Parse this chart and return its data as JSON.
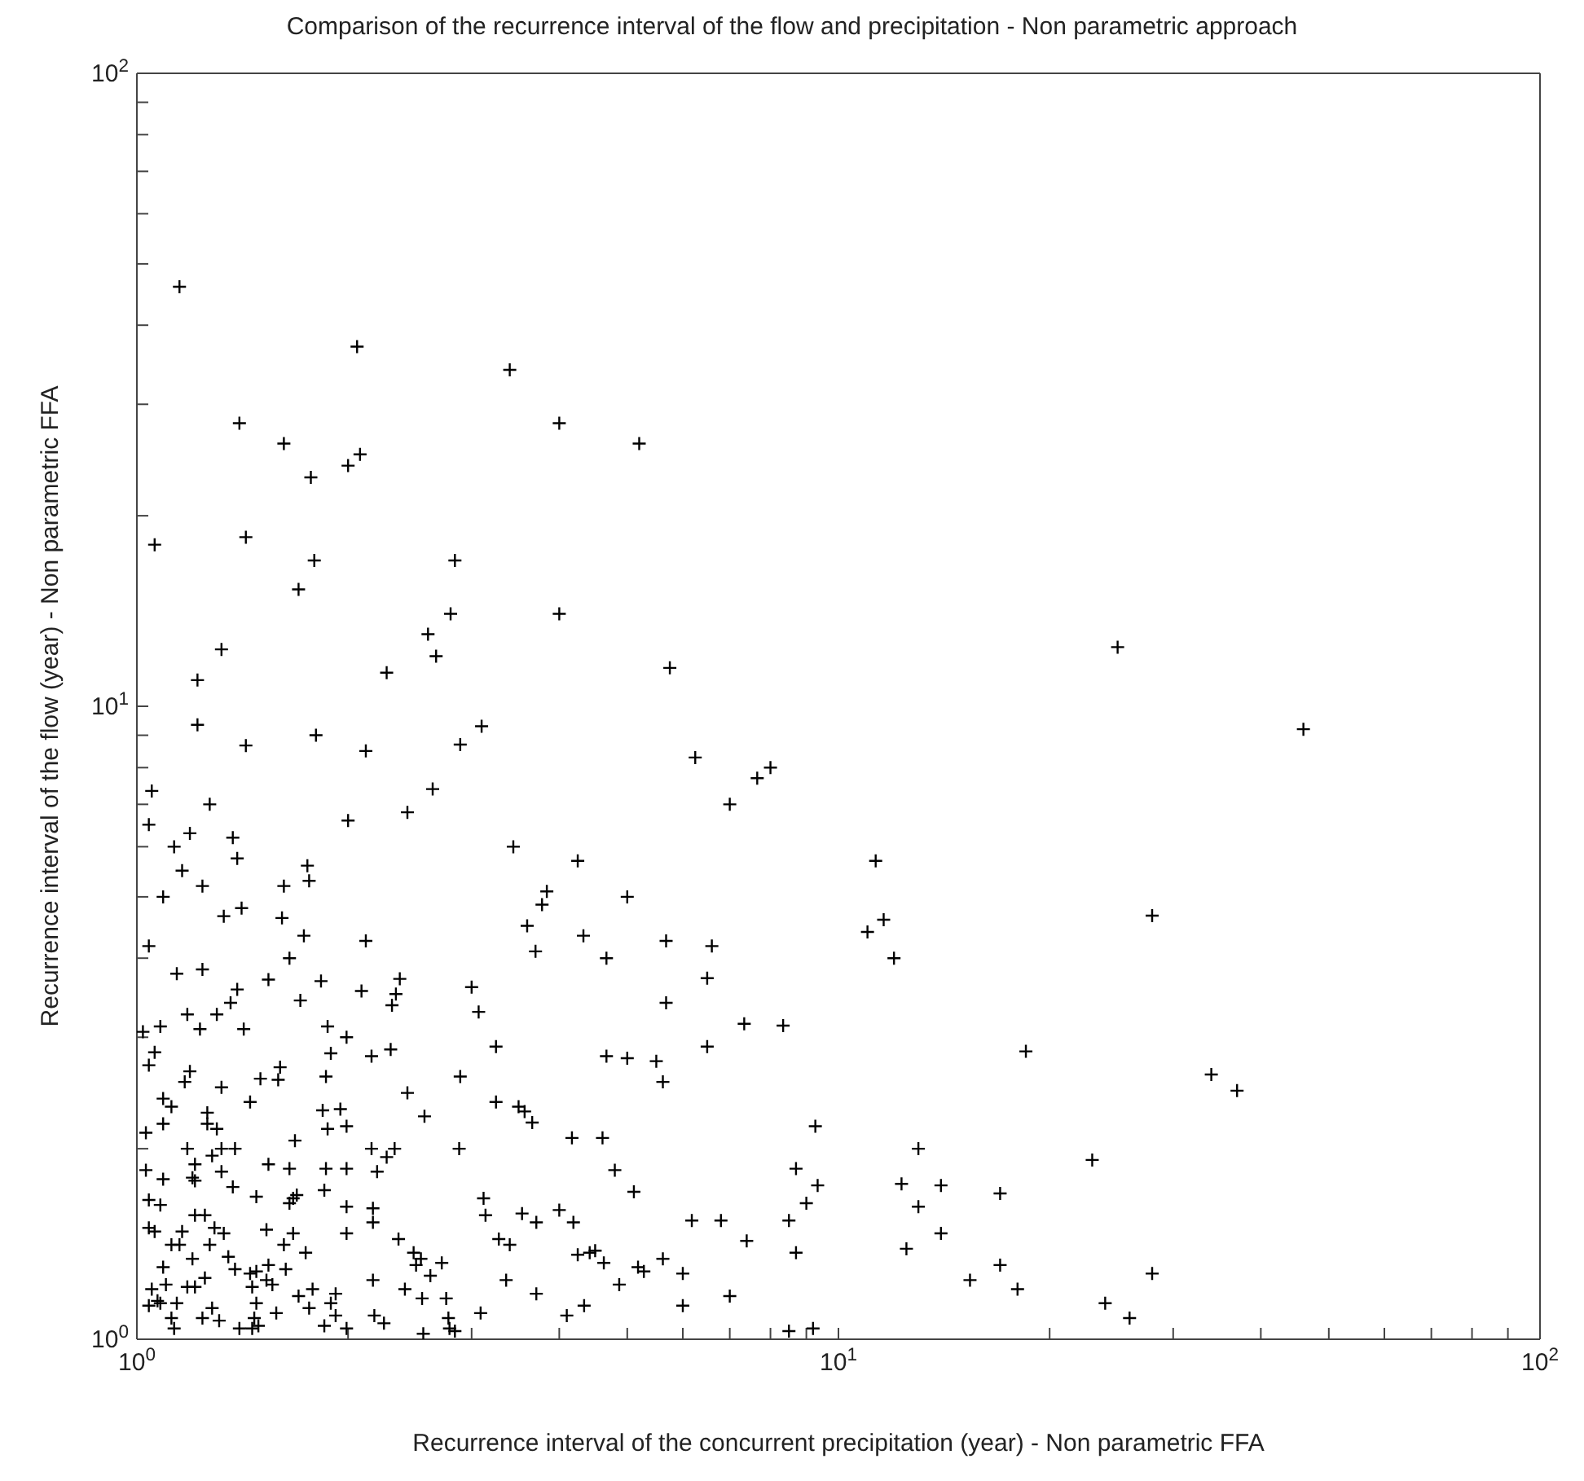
{
  "chart_data": {
    "type": "scatter",
    "title": "Comparison of the recurrence interval of the flow and precipitation - Non parametric approach",
    "xlabel": "Recurrence interval of the concurrent precipitation (year) - Non parametric FFA",
    "ylabel": "Recurrence interval of the flow (year) - Non parametric FFA",
    "log": "xy",
    "marker": "cross",
    "xlim": [
      1,
      100
    ],
    "ylim": [
      1,
      100
    ],
    "xticks": [
      {
        "value": 1,
        "label": "10$^{0}$"
      },
      {
        "value": 2,
        "label": null
      },
      {
        "value": 3,
        "label": null
      },
      {
        "value": 4,
        "label": null
      },
      {
        "value": 5,
        "label": null
      },
      {
        "value": 6,
        "label": null
      },
      {
        "value": 7,
        "label": null
      },
      {
        "value": 8,
        "label": null
      },
      {
        "value": 9,
        "label": null
      },
      {
        "value": 10,
        "label": "10$^{1}$"
      },
      {
        "value": 20,
        "label": null
      },
      {
        "value": 30,
        "label": null
      },
      {
        "value": 40,
        "label": null
      },
      {
        "value": 50,
        "label": null
      },
      {
        "value": 60,
        "label": null
      },
      {
        "value": 70,
        "label": null
      },
      {
        "value": 80,
        "label": null
      },
      {
        "value": 90,
        "label": null
      },
      {
        "value": 100,
        "label": "10$^{2}$"
      }
    ],
    "yticks": [
      {
        "value": 1,
        "label": "10$^{0}$"
      },
      {
        "value": 2,
        "label": null
      },
      {
        "value": 3,
        "label": null
      },
      {
        "value": 4,
        "label": null
      },
      {
        "value": 5,
        "label": null
      },
      {
        "value": 6,
        "label": null
      },
      {
        "value": 7,
        "label": null
      },
      {
        "value": 8,
        "label": null
      },
      {
        "value": 9,
        "label": null
      },
      {
        "value": 10,
        "label": "10$^{1}$"
      },
      {
        "value": 20,
        "label": null
      },
      {
        "value": 30,
        "label": null
      },
      {
        "value": 40,
        "label": null
      },
      {
        "value": 50,
        "label": null
      },
      {
        "value": 60,
        "label": null
      },
      {
        "value": 70,
        "label": null
      },
      {
        "value": 80,
        "label": null
      },
      {
        "value": 90,
        "label": null
      },
      {
        "value": 100,
        "label": "10$^{2}$"
      }
    ],
    "series": [
      {
        "color": "#000000",
        "x": [
          1.15,
          2.06,
          3.4,
          1.4,
          4.0,
          1.62,
          5.2,
          2.0,
          2.08,
          1.77,
          1.06,
          1.43,
          1.79,
          2.84,
          1.7,
          2.8,
          4.0,
          2.6,
          2.67,
          1.32,
          1.22,
          2.27,
          5.75,
          25,
          46,
          28,
          11.6,
          11.3,
          12.0,
          18.5,
          34,
          37,
          13.0,
          23,
          12.3,
          14,
          13.0,
          17,
          14,
          12.5,
          15.4,
          17,
          18,
          28,
          24,
          26,
          6.25,
          7.66,
          8.0,
          7.0,
          3.44,
          4.25,
          3.84,
          3.78,
          5.0,
          3.6,
          3.7,
          4.33,
          4.67,
          5.68,
          6.6,
          11.0,
          6.5,
          5.68,
          7.34,
          8.34,
          3.25,
          4.67,
          5.0,
          5.5,
          5.62,
          6.5,
          3.25,
          3.5,
          3.57,
          3.66,
          4.17,
          4.61,
          9.27,
          4.8,
          5.11,
          8.7,
          9.34,
          9.0,
          3.54,
          3.71,
          4.0,
          4.19,
          6.18,
          6.8,
          8.5,
          8.7,
          7.4,
          3.28,
          3.4,
          4.25,
          4.42,
          4.5,
          4.63,
          5.18,
          5.28,
          5.62,
          6.0,
          3.36,
          3.71,
          4.87,
          4.1,
          4.34,
          6.0,
          7.0,
          8.5,
          9.2,
          1.22,
          1.43,
          1.8,
          2.12,
          3.1,
          2.89,
          2.64,
          2.43,
          2.0,
          1.05,
          1.04,
          1.27,
          1.13,
          1.19,
          1.37,
          1.39,
          1.16,
          1.24,
          1.09,
          1.75,
          1.76,
          1.62,
          1.33,
          1.41,
          1.61,
          1.73,
          1.04,
          2.12,
          1.65,
          1.14,
          1.24,
          1.54,
          1.83,
          2.09,
          2.37,
          2.34,
          2.31,
          1.39,
          1.36,
          3.0,
          3.07,
          1.71,
          1.18,
          1.3,
          1.08,
          1.02,
          1.23,
          1.42,
          1.87,
          1.99,
          2.16,
          2.3,
          1.06,
          1.04,
          1.19,
          1.17,
          1.32,
          1.5,
          1.59,
          1.6,
          1.86,
          1.45,
          1.89,
          2.43,
          2.89,
          2.57,
          1.09,
          1.12,
          1.09,
          1.26,
          1.26,
          1.3,
          1.03,
          1.84,
          1.95,
          1.87,
          1.99,
          1.68,
          1.18,
          1.32,
          1.38,
          1.28,
          1.21,
          1.2,
          1.21,
          1.54,
          1.65,
          1.86,
          1.99,
          2.16,
          2.27,
          2.33,
          2.2,
          2.88,
          1.03,
          1.09,
          1.32,
          1.37,
          1.48,
          1.69,
          1.67,
          1.65,
          1.85,
          1.99,
          2.17,
          2.17,
          1.04,
          1.08,
          3.12,
          3.14,
          1.21,
          1.25,
          1.04,
          1.06,
          1.16,
          1.29,
          1.33,
          1.53,
          1.67,
          1.62,
          1.99,
          2.36,
          1.74,
          1.12,
          1.15,
          1.27,
          1.2,
          1.35,
          1.38,
          1.09,
          1.63,
          1.54,
          1.45,
          1.48,
          1.53,
          1.56,
          1.46,
          2.48,
          2.54,
          2.5,
          2.62,
          2.72,
          2.41,
          2.55,
          2.76,
          2.17,
          1.7,
          1.78,
          1.89,
          1.92,
          1.1,
          1.18,
          1.21,
          1.25,
          1.05,
          1.04,
          1.07,
          1.08,
          1.14,
          1.28,
          1.24,
          1.31,
          1.12,
          1.13,
          1.48,
          1.47,
          1.49,
          1.4,
          1.46,
          1.58,
          1.76,
          1.85,
          1.92,
          1.99,
          2.18,
          2.25,
          2.56,
          2.78,
          2.79,
          2.84,
          3.09
        ],
        "values": [
          46,
          37,
          34,
          28,
          28,
          26,
          26,
          24,
          25,
          23,
          18,
          18.5,
          17,
          17,
          15.3,
          14,
          14,
          13,
          12,
          12.3,
          11,
          11.3,
          11.5,
          12.4,
          9.2,
          4.67,
          4.6,
          5.7,
          4.0,
          2.85,
          2.62,
          2.47,
          2.0,
          1.92,
          1.76,
          1.75,
          1.62,
          1.7,
          1.47,
          1.39,
          1.24,
          1.31,
          1.2,
          1.27,
          1.14,
          1.08,
          8.3,
          7.7,
          8.0,
          7.0,
          6.0,
          5.7,
          5.1,
          4.86,
          5.0,
          4.5,
          4.1,
          4.34,
          4.0,
          4.26,
          4.18,
          4.4,
          3.72,
          3.4,
          3.15,
          3.13,
          2.9,
          2.8,
          2.78,
          2.75,
          2.55,
          2.9,
          2.37,
          2.33,
          2.29,
          2.2,
          2.08,
          2.08,
          2.17,
          1.85,
          1.71,
          1.86,
          1.75,
          1.64,
          1.58,
          1.53,
          1.6,
          1.53,
          1.54,
          1.54,
          1.54,
          1.37,
          1.43,
          1.44,
          1.41,
          1.36,
          1.37,
          1.38,
          1.32,
          1.3,
          1.28,
          1.34,
          1.27,
          1.24,
          1.18,
          1.22,
          1.09,
          1.13,
          1.13,
          1.17,
          1.03,
          1.04,
          9.35,
          8.67,
          9.0,
          8.5,
          9.3,
          8.7,
          7.4,
          6.8,
          6.6,
          7.35,
          6.5,
          7.0,
          6.0,
          6.3,
          6.2,
          5.75,
          5.5,
          5.2,
          5.0,
          5.6,
          5.3,
          5.2,
          4.66,
          4.8,
          4.63,
          4.34,
          4.18,
          4.26,
          4.0,
          3.78,
          3.84,
          3.7,
          3.68,
          3.55,
          3.71,
          3.51,
          3.37,
          3.57,
          3.4,
          3.6,
          3.29,
          3.43,
          3.26,
          3.26,
          3.12,
          3.06,
          3.09,
          3.09,
          3.12,
          3.0,
          2.8,
          2.87,
          2.84,
          2.71,
          2.65,
          2.55,
          2.5,
          2.58,
          2.57,
          2.69,
          2.6,
          2.37,
          2.83,
          2.45,
          2.6,
          2.25,
          2.4,
          2.33,
          2.19,
          2.28,
          2.19,
          2.15,
          2.12,
          2.3,
          2.31,
          2.15,
          2.17,
          2.06,
          2.0,
          2.0,
          2.0,
          1.95,
          1.89,
          1.8,
          1.78,
          1.89,
          1.86,
          1.86,
          1.86,
          2.0,
          1.94,
          2.0,
          1.84,
          2.0,
          1.85,
          1.79,
          1.84,
          1.74,
          1.68,
          1.69,
          1.67,
          1.64,
          1.72,
          1.62,
          1.61,
          1.53,
          1.66,
          1.63,
          1.67,
          1.57,
          1.57,
          1.57,
          1.5,
          1.48,
          1.48,
          1.5,
          1.47,
          1.49,
          1.47,
          1.41,
          1.47,
          1.44,
          1.37,
          1.41,
          1.41,
          1.41,
          1.34,
          1.35,
          1.29,
          1.3,
          1.29,
          1.31,
          1.27,
          1.28,
          1.24,
          1.22,
          1.21,
          1.37,
          1.34,
          1.31,
          1.26,
          1.32,
          1.2,
          1.16,
          1.16,
          1.24,
          1.17,
          1.2,
          1.14,
          1.18,
          1.22,
          1.21,
          1.21,
          1.25,
          1.2,
          1.13,
          1.15,
          1.14,
          1.14,
          1.12,
          1.08,
          1.07,
          1.08,
          1.04,
          1.14,
          1.08,
          1.05,
          1.04,
          1.04,
          1.1,
          1.12,
          1.05,
          1.09,
          1.04,
          1.09,
          1.06,
          1.02,
          1.08,
          1.04,
          1.03,
          1.1
        ]
      }
    ]
  }
}
